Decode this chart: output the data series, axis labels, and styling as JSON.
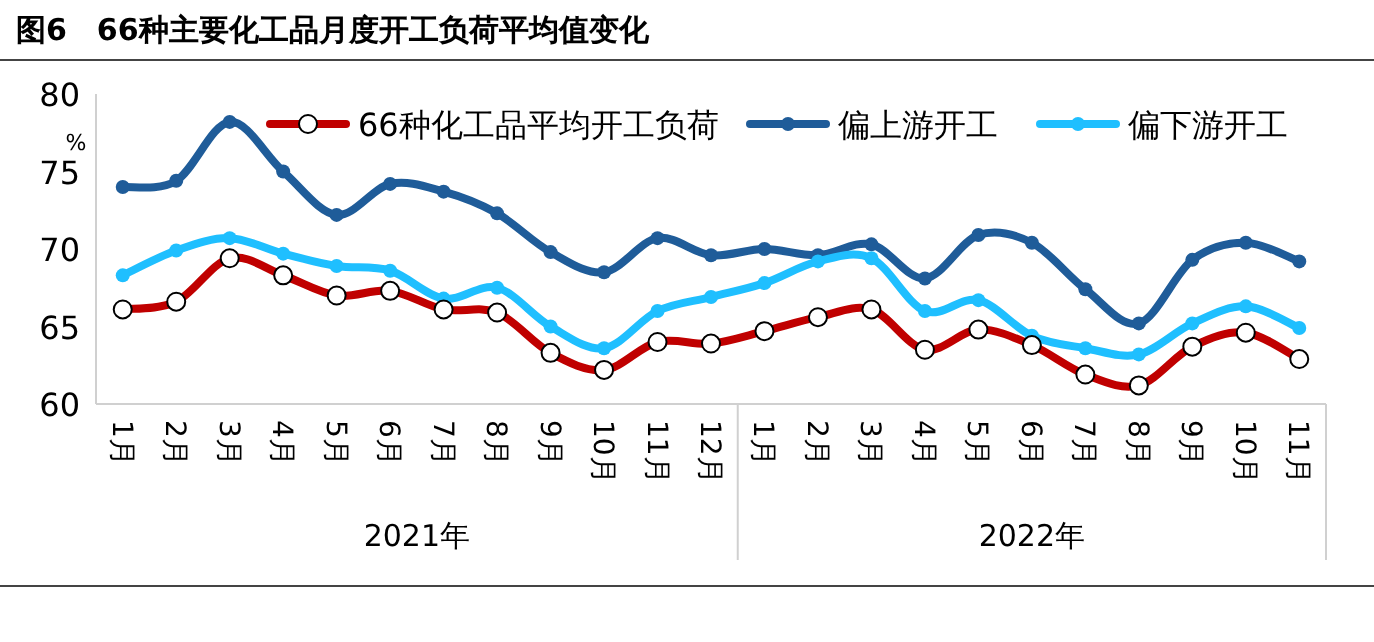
{
  "chart_data": {
    "type": "line",
    "title": "图6　66种主要化工品月度开工负荷平均值变化",
    "ylabel": "%",
    "categories": [
      "1月",
      "2月",
      "3月",
      "4月",
      "5月",
      "6月",
      "7月",
      "8月",
      "9月",
      "10月",
      "11月",
      "12月",
      "1月",
      "2月",
      "3月",
      "4月",
      "5月",
      "6月",
      "7月",
      "8月",
      "9月",
      "10月",
      "11月"
    ],
    "series": [
      {
        "name": "66种化工品平均开工负荷",
        "color": "#c00000",
        "values": [
          66.1,
          66.6,
          69.4,
          68.3,
          67.0,
          67.3,
          66.1,
          65.9,
          63.3,
          62.2,
          64.0,
          63.9,
          64.7,
          65.6,
          66.1,
          63.5,
          64.8,
          63.8,
          61.9,
          61.2,
          63.7,
          64.6,
          62.9
        ]
      },
      {
        "name": "偏上游开工",
        "color": "#1f5c99",
        "values": [
          74.0,
          74.4,
          78.2,
          75.0,
          72.2,
          74.2,
          73.7,
          72.3,
          69.8,
          68.5,
          70.7,
          69.6,
          70.0,
          69.6,
          70.3,
          68.1,
          70.9,
          70.4,
          67.4,
          65.2,
          69.3,
          70.4,
          69.2
        ]
      },
      {
        "name": "偏下游开工",
        "color": "#1fbfff",
        "values": [
          68.3,
          69.9,
          70.7,
          69.7,
          68.9,
          68.6,
          66.8,
          67.5,
          65.0,
          63.6,
          66.0,
          66.9,
          67.8,
          69.2,
          69.4,
          66.0,
          66.7,
          64.4,
          63.6,
          63.2,
          65.2,
          66.3,
          64.9
        ]
      }
    ],
    "annotations": [
      "2021年",
      "2022年"
    ],
    "ylim": [
      60,
      80
    ],
    "yticks": [
      60,
      65,
      70,
      75,
      80
    ],
    "grid": false,
    "legend": "top",
    "marker": "circle",
    "line_style": "solid"
  }
}
